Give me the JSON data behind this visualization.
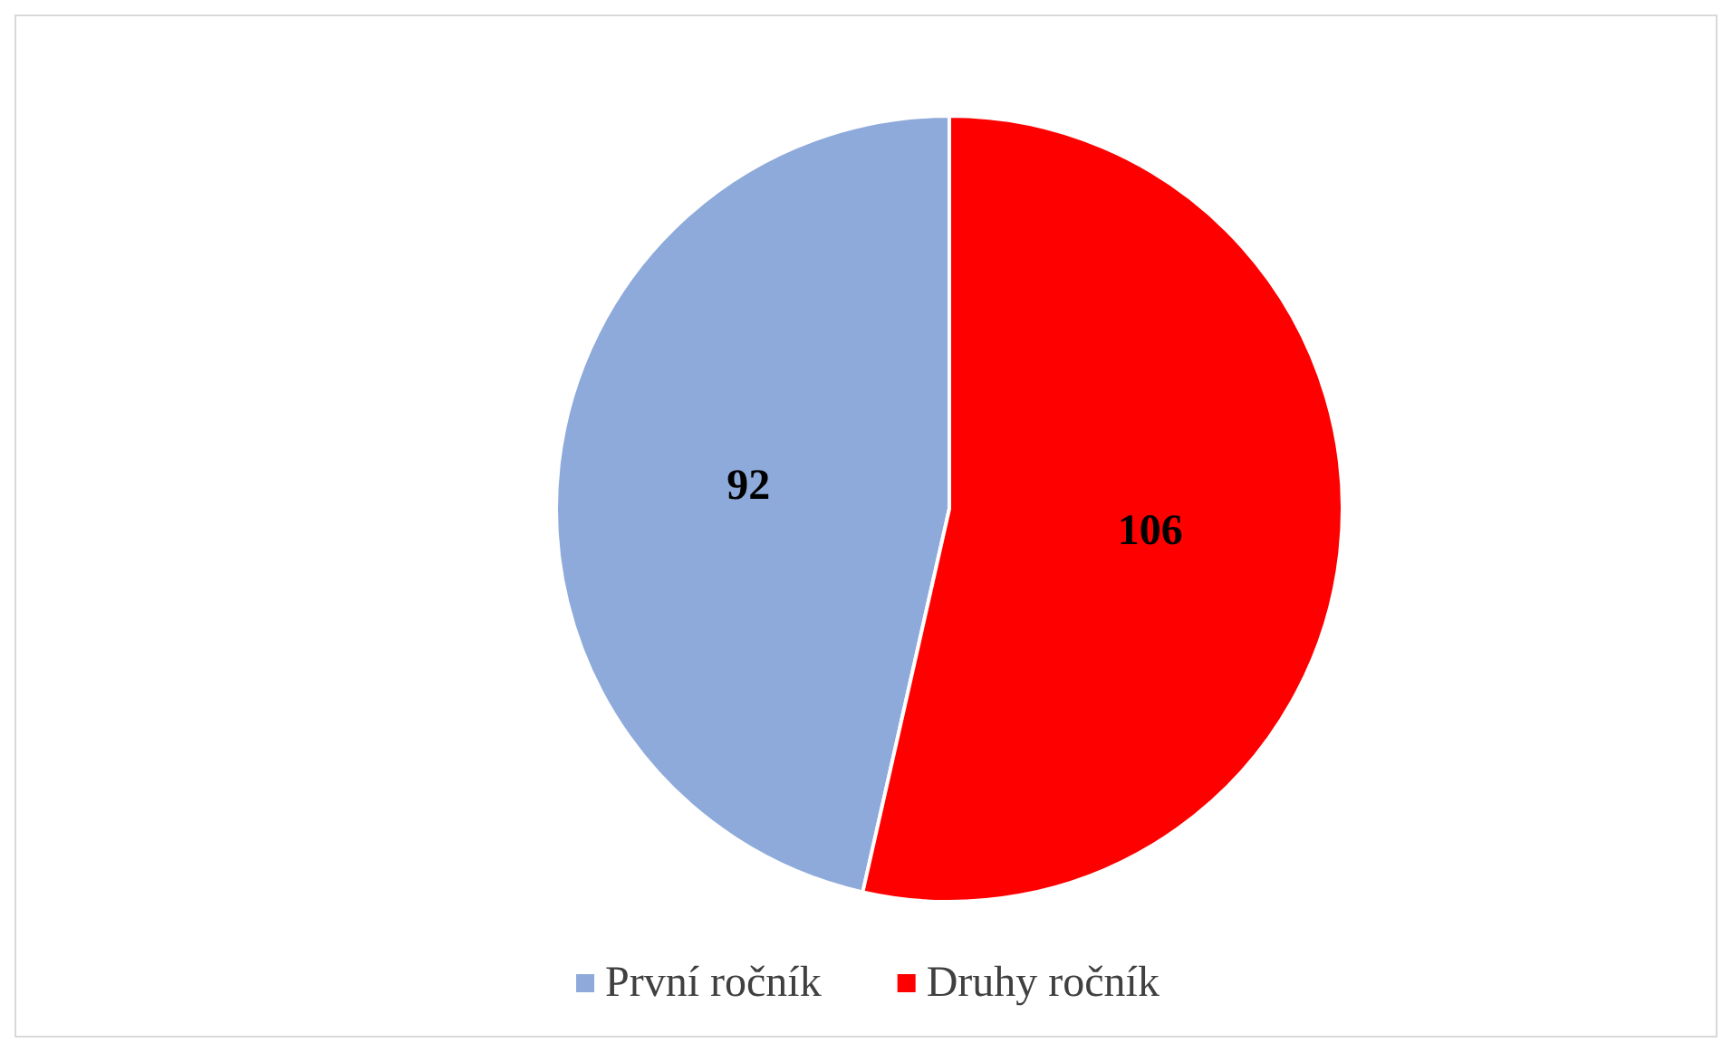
{
  "chart_data": {
    "type": "pie",
    "categories": [
      "První ročník",
      "Druhy ročník"
    ],
    "values": [
      92,
      106
    ],
    "colors": [
      "#8eaadb",
      "#ff0000"
    ],
    "data_labels": true,
    "legend": "bottom"
  }
}
